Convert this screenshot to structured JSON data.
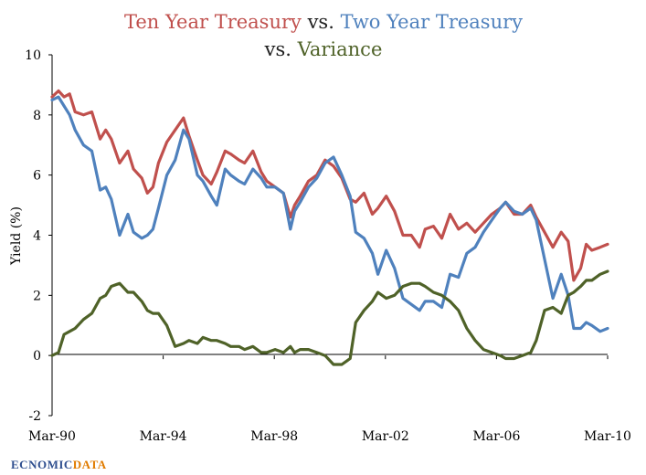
{
  "colors": {
    "ten_year": "#c0504d",
    "two_year": "#4f81bd",
    "variance": "#4f6228",
    "title_dark": "#1f1f1f",
    "logo_blue": "#2f4f8f",
    "logo_orange": "#e07b00"
  },
  "title": {
    "ten_year": "Ten Year Treasury",
    "vs1": " vs. ",
    "two_year": "Two Year Treasury",
    "vs2": "vs. ",
    "variance": "Variance"
  },
  "logo": {
    "part1": "EC",
    "part2": "NOMIC",
    "part3": "DATA"
  },
  "chart_data": {
    "type": "line",
    "title": "Ten Year Treasury vs. Two Year Treasury vs. Variance",
    "xlabel": "",
    "ylabel": "Yield (%)",
    "ylim": [
      -2,
      10
    ],
    "yticks": [
      "-2",
      "0",
      "2",
      "4",
      "6",
      "8",
      "10"
    ],
    "xlim": [
      1990.17,
      2010.17
    ],
    "xticks": [
      {
        "x": 1990.17,
        "label": "Mar-90"
      },
      {
        "x": 1994.17,
        "label": "Mar-94"
      },
      {
        "x": 1998.17,
        "label": "Mar-98"
      },
      {
        "x": 2002.17,
        "label": "Mar-02"
      },
      {
        "x": 2006.17,
        "label": "Mar-06"
      },
      {
        "x": 2010.17,
        "label": "Mar-10"
      }
    ],
    "grid": false,
    "legend": "none",
    "series": [
      {
        "key": "ten_year",
        "x": [
          1990.17,
          1990.4,
          1990.6,
          1990.8,
          1991.0,
          1991.3,
          1991.6,
          1991.9,
          1992.1,
          1992.3,
          1992.6,
          1992.9,
          1993.1,
          1993.4,
          1993.6,
          1993.8,
          1994.0,
          1994.3,
          1994.6,
          1994.9,
          1995.1,
          1995.4,
          1995.6,
          1995.9,
          1996.1,
          1996.4,
          1996.6,
          1996.9,
          1997.1,
          1997.4,
          1997.7,
          1997.9,
          1998.2,
          1998.5,
          1998.75,
          1998.9,
          1999.1,
          1999.4,
          1999.7,
          2000.0,
          2000.3,
          2000.6,
          2000.9,
          2001.1,
          2001.4,
          2001.7,
          2001.9,
          2002.2,
          2002.5,
          2002.8,
          2003.1,
          2003.4,
          2003.6,
          2003.9,
          2004.2,
          2004.5,
          2004.8,
          2005.1,
          2005.4,
          2005.7,
          2006.0,
          2006.3,
          2006.5,
          2006.8,
          2007.1,
          2007.4,
          2007.6,
          2007.9,
          2008.2,
          2008.5,
          2008.75,
          2008.95,
          2009.2,
          2009.4,
          2009.6,
          2009.9,
          2010.17
        ],
        "values": [
          8.6,
          8.8,
          8.6,
          8.7,
          8.1,
          8.0,
          8.1,
          7.2,
          7.5,
          7.2,
          6.4,
          6.8,
          6.2,
          5.9,
          5.4,
          5.6,
          6.4,
          7.1,
          7.5,
          7.9,
          7.3,
          6.5,
          6.0,
          5.7,
          6.1,
          6.8,
          6.7,
          6.5,
          6.4,
          6.8,
          6.1,
          5.8,
          5.6,
          5.4,
          4.6,
          5.0,
          5.3,
          5.8,
          6.0,
          6.5,
          6.3,
          5.9,
          5.2,
          5.1,
          5.4,
          4.7,
          4.9,
          5.3,
          4.8,
          4.0,
          4.0,
          3.6,
          4.2,
          4.3,
          3.9,
          4.7,
          4.2,
          4.4,
          4.1,
          4.4,
          4.7,
          4.9,
          5.1,
          4.7,
          4.7,
          5.0,
          4.6,
          4.1,
          3.6,
          4.1,
          3.8,
          2.5,
          2.9,
          3.7,
          3.5,
          3.6,
          3.7
        ]
      },
      {
        "key": "two_year",
        "x": [
          1990.17,
          1990.4,
          1990.6,
          1990.8,
          1991.0,
          1991.3,
          1991.6,
          1991.9,
          1992.1,
          1992.3,
          1992.6,
          1992.9,
          1993.1,
          1993.4,
          1993.6,
          1993.8,
          1994.0,
          1994.3,
          1994.6,
          1994.9,
          1995.1,
          1995.4,
          1995.6,
          1995.9,
          1996.1,
          1996.4,
          1996.6,
          1996.9,
          1997.1,
          1997.4,
          1997.7,
          1997.9,
          1998.2,
          1998.5,
          1998.75,
          1998.9,
          1999.1,
          1999.4,
          1999.7,
          2000.0,
          2000.3,
          2000.6,
          2000.9,
          2001.1,
          2001.4,
          2001.7,
          2001.9,
          2002.2,
          2002.5,
          2002.8,
          2003.1,
          2003.4,
          2003.6,
          2003.9,
          2004.2,
          2004.5,
          2004.8,
          2005.1,
          2005.4,
          2005.7,
          2006.0,
          2006.3,
          2006.5,
          2006.8,
          2007.1,
          2007.4,
          2007.6,
          2007.9,
          2008.2,
          2008.5,
          2008.75,
          2008.95,
          2009.2,
          2009.4,
          2009.6,
          2009.9,
          2010.17
        ],
        "values": [
          8.5,
          8.6,
          8.3,
          8.0,
          7.5,
          7.0,
          6.8,
          5.5,
          5.6,
          5.2,
          4.0,
          4.7,
          4.1,
          3.9,
          4.0,
          4.2,
          4.9,
          6.0,
          6.5,
          7.5,
          7.2,
          6.0,
          5.8,
          5.3,
          5.0,
          6.2,
          6.0,
          5.8,
          5.7,
          6.2,
          5.9,
          5.6,
          5.6,
          5.4,
          4.2,
          4.8,
          5.1,
          5.6,
          5.9,
          6.4,
          6.6,
          6.0,
          5.3,
          4.1,
          3.9,
          3.4,
          2.7,
          3.5,
          2.9,
          1.9,
          1.7,
          1.5,
          1.8,
          1.8,
          1.6,
          2.7,
          2.6,
          3.4,
          3.6,
          4.1,
          4.5,
          4.9,
          5.1,
          4.8,
          4.7,
          4.9,
          4.5,
          3.2,
          1.9,
          2.7,
          2.0,
          0.9,
          0.9,
          1.1,
          1.0,
          0.8,
          0.9
        ]
      },
      {
        "key": "variance",
        "x": [
          1990.17,
          1990.4,
          1990.6,
          1990.8,
          1991.0,
          1991.3,
          1991.6,
          1991.9,
          1992.1,
          1992.3,
          1992.6,
          1992.9,
          1993.1,
          1993.4,
          1993.6,
          1993.8,
          1994.0,
          1994.3,
          1994.6,
          1994.9,
          1995.1,
          1995.4,
          1995.6,
          1995.9,
          1996.1,
          1996.4,
          1996.6,
          1996.9,
          1997.1,
          1997.4,
          1997.7,
          1997.9,
          1998.2,
          1998.5,
          1998.75,
          1998.9,
          1999.1,
          1999.4,
          1999.7,
          2000.0,
          2000.3,
          2000.6,
          2000.9,
          2001.1,
          2001.4,
          2001.7,
          2001.9,
          2002.2,
          2002.5,
          2002.8,
          2003.1,
          2003.4,
          2003.6,
          2003.9,
          2004.2,
          2004.5,
          2004.8,
          2005.1,
          2005.4,
          2005.7,
          2006.0,
          2006.3,
          2006.5,
          2006.8,
          2007.1,
          2007.4,
          2007.6,
          2007.9,
          2008.2,
          2008.5,
          2008.75,
          2008.95,
          2009.2,
          2009.4,
          2009.6,
          2009.9,
          2010.17
        ],
        "values": [
          0.0,
          0.1,
          0.7,
          0.8,
          0.9,
          1.2,
          1.4,
          1.9,
          2.0,
          2.3,
          2.4,
          2.1,
          2.1,
          1.8,
          1.5,
          1.4,
          1.4,
          1.0,
          0.3,
          0.4,
          0.5,
          0.4,
          0.6,
          0.5,
          0.5,
          0.4,
          0.3,
          0.3,
          0.2,
          0.3,
          0.1,
          0.1,
          0.2,
          0.1,
          0.3,
          0.1,
          0.2,
          0.2,
          0.1,
          0.0,
          -0.3,
          -0.3,
          -0.1,
          1.1,
          1.5,
          1.8,
          2.1,
          1.9,
          2.0,
          2.3,
          2.4,
          2.4,
          2.3,
          2.1,
          2.0,
          1.8,
          1.5,
          0.9,
          0.5,
          0.2,
          0.1,
          0.0,
          -0.1,
          -0.1,
          0.0,
          0.1,
          0.5,
          1.5,
          1.6,
          1.4,
          2.0,
          2.1,
          2.3,
          2.5,
          2.5,
          2.7,
          2.8
        ]
      }
    ]
  }
}
